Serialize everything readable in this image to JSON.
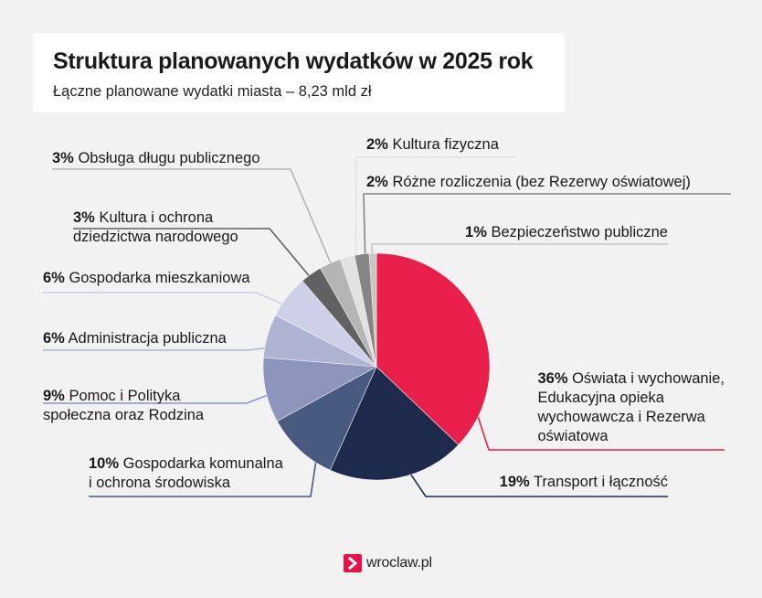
{
  "header": {
    "title": "Struktura planowanych wydatków w 2025 rok",
    "subtitle": "Łączne planowane wydatki miasta – 8,23 mld zł"
  },
  "chart_data": {
    "type": "pie",
    "title": "Struktura planowanych wydatków w 2025 rok",
    "subtitle": "Łączne planowane wydatki miasta – 8,23 mld zł",
    "start_angle_deg": 0,
    "direction": "clockwise",
    "slices": [
      {
        "pct_label": "36%",
        "value": 36,
        "label_lines": [
          "Oświata i wychowanie,",
          "Edukacyjna opieka",
          "wychowawcza i Rezerwa",
          "oświatowa"
        ],
        "color": "#e81e4b"
      },
      {
        "pct_label": "19%",
        "value": 19,
        "label_lines": [
          "Transport i łączność"
        ],
        "color": "#1d2a4c"
      },
      {
        "pct_label": "10%",
        "value": 10,
        "label_lines": [
          "Gospodarka komunalna",
          "i ochrona środowiska"
        ],
        "color": "#485a80"
      },
      {
        "pct_label": "9%",
        "value": 9,
        "label_lines": [
          "Pomoc i Polityka",
          "społeczna oraz Rodzina"
        ],
        "color": "#8c95bb"
      },
      {
        "pct_label": "6%",
        "value": 6,
        "label_lines": [
          "Administracja publiczna"
        ],
        "color": "#aeb3d2"
      },
      {
        "pct_label": "6%",
        "value": 6,
        "label_lines": [
          "Gospodarka mieszkaniowa"
        ],
        "color": "#cdd0e6"
      },
      {
        "pct_label": "3%",
        "value": 3,
        "label_lines": [
          "Kultura i ochrona",
          "dziedzictwa narodowego"
        ],
        "color": "#616161"
      },
      {
        "pct_label": "3%",
        "value": 3,
        "label_lines": [
          "Obsługa długu publicznego"
        ],
        "color": "#b5b5b5"
      },
      {
        "pct_label": "2%",
        "value": 2,
        "label_lines": [
          "Kultura fizyczna"
        ],
        "color": "#e2e2e2"
      },
      {
        "pct_label": "2%",
        "value": 2,
        "label_lines": [
          "Różne rozliczenia (bez Rezerwy oświatowej)"
        ],
        "color": "#858585"
      },
      {
        "pct_label": "1%",
        "value": 1,
        "label_lines": [
          "Bezpieczeństwo publiczne"
        ],
        "color": "#c6c6c6"
      }
    ]
  },
  "footer": {
    "logo_text": "wroclaw.pl",
    "logo_color": "#e5134a"
  }
}
